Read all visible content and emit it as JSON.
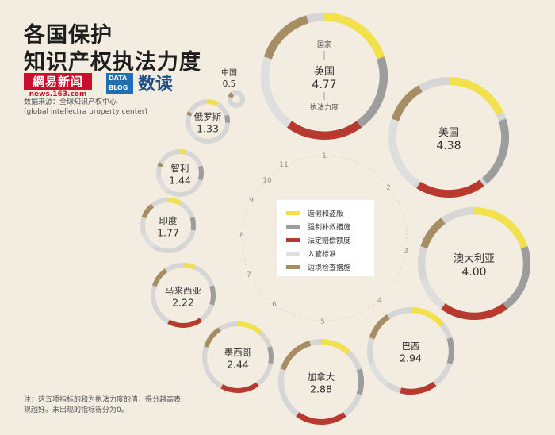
{
  "header": {
    "title_line1": "各国保护",
    "title_line2": "知识产权执法力度",
    "logo_netease": "網易新闻",
    "logo_netease_url": "news.163.com",
    "logo_datablog": "DATA BLOG",
    "logo_shudu": "数读",
    "source_line1": "数据来源：全球知识产权中心",
    "source_line2": "(global intellectra property center)"
  },
  "note": "注：这五项指标的和为执法力度的值，得分越高表现越好。未出现的指标得分为0。",
  "colors": {
    "background": "#f2ece1",
    "counterfeit": "#f2e14a",
    "civil_remedy": "#9d9d9d",
    "statutory_damages": "#b83a2e",
    "entry_standard": "#dedede",
    "border_measures": "#a68d63",
    "track": "#d6d6d6"
  },
  "chart_data": {
    "type": "donut",
    "title": "各国保护知识产权执法力度",
    "metric_label": "执法力度",
    "legend": [
      {
        "key": "counterfeit",
        "label": "造假和盗版"
      },
      {
        "key": "civil_remedy",
        "label": "强制补救措施"
      },
      {
        "key": "statutory_damages",
        "label": "法定赔偿额度"
      },
      {
        "key": "entry_standard",
        "label": "入管标准"
      },
      {
        "key": "border_measures",
        "label": "边境检查措施"
      }
    ],
    "order_labels": [
      "1",
      "2",
      "3",
      "4",
      "5",
      "6",
      "7",
      "8",
      "9",
      "10",
      "11"
    ],
    "uk_ring_labels": {
      "top": "国家",
      "bottom": "执法力度"
    },
    "countries": [
      {
        "rank": 1,
        "name": "英国",
        "value": 4.77,
        "components": [
          1.0,
          1.0,
          1.0,
          1.0,
          0.77
        ]
      },
      {
        "rank": 2,
        "name": "美国",
        "value": 4.38,
        "components": [
          0.9,
          0.95,
          0.95,
          1.0,
          0.58
        ]
      },
      {
        "rank": 3,
        "name": "澳大利亚",
        "value": 4.0,
        "components": [
          1.0,
          1.0,
          1.0,
          0.5,
          0.5
        ]
      },
      {
        "rank": 4,
        "name": "巴西",
        "value": 2.94,
        "components": [
          0.7,
          0.5,
          0.7,
          0.5,
          0.54
        ]
      },
      {
        "rank": 5,
        "name": "加拿大",
        "value": 2.88,
        "components": [
          0.6,
          0.5,
          1.0,
          0.0,
          0.78
        ]
      },
      {
        "rank": 6,
        "name": "墨西哥",
        "value": 2.44,
        "components": [
          0.6,
          0.4,
          0.9,
          0.0,
          0.54
        ]
      },
      {
        "rank": 7,
        "name": "马来西亚",
        "value": 2.22,
        "components": [
          0.3,
          0.5,
          0.9,
          0.0,
          0.52
        ]
      },
      {
        "rank": 8,
        "name": "印度",
        "value": 1.77,
        "components": [
          0.4,
          0.4,
          0.0,
          0.5,
          0.47
        ]
      },
      {
        "rank": 9,
        "name": "智利",
        "value": 1.44,
        "components": [
          0.2,
          0.5,
          0.0,
          0.6,
          0.14
        ]
      },
      {
        "rank": 10,
        "name": "俄罗斯",
        "value": 1.33,
        "components": [
          0.4,
          0.3,
          0.0,
          0.5,
          0.13
        ]
      },
      {
        "rank": 11,
        "name": "中国",
        "value": 0.5,
        "components": [
          0.0,
          0.0,
          0.0,
          0.0,
          0.5
        ]
      }
    ]
  }
}
